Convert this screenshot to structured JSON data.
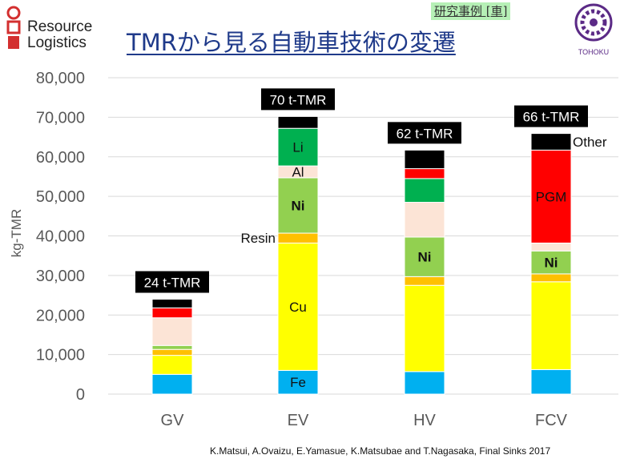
{
  "header": {
    "logo_line1": "Resource",
    "logo_line2": "Logistics",
    "tag": "研究事例 [車]",
    "title": "TMRから見る自動車技術の変遷",
    "university": "TOHOKU"
  },
  "citation": "K.Matsui, A.Ovaizu, E.Yamasue, K.Matsubae and T.Nagasaka, Final Sinks  2017",
  "colors": {
    "Fe": "#00b0f0",
    "Cu": "#ffff00",
    "Resin": "#ffc000",
    "Ni": "#92d050",
    "Al": "#fce4d6",
    "Li": "#00b050",
    "PGM": "#ff0000",
    "Other": "#000000",
    "title": "#1f3a8a",
    "axis_text": "#595959"
  },
  "chart_data": {
    "type": "bar",
    "stacked": true,
    "ylabel": "kg-TMR",
    "ylim": [
      0,
      80000
    ],
    "yticks": [
      "0",
      "10,000",
      "20,000",
      "30,000",
      "40,000",
      "50,000",
      "60,000",
      "70,000",
      "80,000"
    ],
    "categories": [
      "GV",
      "EV",
      "HV",
      "FCV"
    ],
    "totals_labels": [
      "24 t-TMR",
      "70 t-TMR",
      "62 t-TMR",
      "66 t-TMR"
    ],
    "series": [
      {
        "name": "Fe",
        "color_key": "Fe",
        "values": [
          5000,
          6000,
          5700,
          6200
        ]
      },
      {
        "name": "Cu",
        "color_key": "Cu",
        "values": [
          4800,
          32200,
          21800,
          22200
        ]
      },
      {
        "name": "Resin",
        "color_key": "Resin",
        "values": [
          1500,
          2500,
          2200,
          2000
        ]
      },
      {
        "name": "Ni",
        "color_key": "Ni",
        "values": [
          1000,
          14000,
          10000,
          5800
        ]
      },
      {
        "name": "Al",
        "color_key": "Al",
        "values": [
          7000,
          3000,
          8800,
          2000
        ]
      },
      {
        "name": "Li",
        "color_key": "Li",
        "values": [
          0,
          9500,
          6000,
          0
        ]
      },
      {
        "name": "PGM",
        "color_key": "PGM",
        "values": [
          2500,
          0,
          2500,
          23500
        ]
      },
      {
        "name": "Other",
        "color_key": "Other",
        "values": [
          2200,
          3000,
          4700,
          4200
        ]
      }
    ],
    "segment_labels": [
      {
        "category": "EV",
        "series": "Fe",
        "text": "Fe",
        "bold": false
      },
      {
        "category": "EV",
        "series": "Cu",
        "text": "Cu",
        "bold": false
      },
      {
        "category": "EV",
        "series": "Ni",
        "text": "Ni",
        "bold": true
      },
      {
        "category": "EV",
        "series": "Al",
        "text": "Al",
        "bold": false
      },
      {
        "category": "EV",
        "series": "Li",
        "text": "Li",
        "bold": false
      },
      {
        "category": "HV",
        "series": "Ni",
        "text": "Ni",
        "bold": true
      },
      {
        "category": "FCV",
        "series": "Ni",
        "text": "Ni",
        "bold": true
      },
      {
        "category": "FCV",
        "series": "PGM",
        "text": "PGM",
        "bold": false
      }
    ],
    "outside_labels": [
      {
        "category": "EV",
        "series": "Resin",
        "text": "Resin",
        "side": "left"
      },
      {
        "category": "FCV",
        "series": "Other",
        "text": "Other",
        "side": "right"
      }
    ],
    "grid": true
  }
}
